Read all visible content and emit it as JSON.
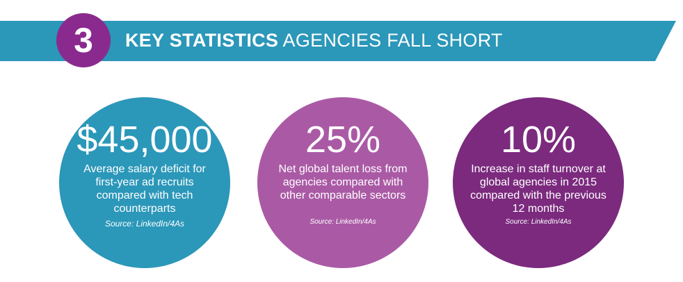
{
  "banner": {
    "step_number": "3",
    "title_strong": "KEY STATISTICS",
    "title_light": "AGENCIES FALL SHORT"
  },
  "stats": [
    {
      "figure": "$45,000",
      "description": "Average salary deficit for first-year ad recruits compared with tech counterparts",
      "source": "Source: LinkedIn/4As"
    },
    {
      "figure": "25%",
      "description": "Net global talent loss from agencies compared with other comparable sectors",
      "source": "Source: LinkedIn/4As"
    },
    {
      "figure": "10%",
      "description": "Increase in staff turnover at global agencies in 2015 compared with the previous 12 months",
      "source": "Source: LinkedIn/4As"
    }
  ],
  "colors": {
    "banner": "#2b97b9",
    "badge": "#8a2a8e",
    "circle_1": "#2b97b9",
    "circle_2": "#aa5aa5",
    "circle_3": "#7b2a7e"
  }
}
